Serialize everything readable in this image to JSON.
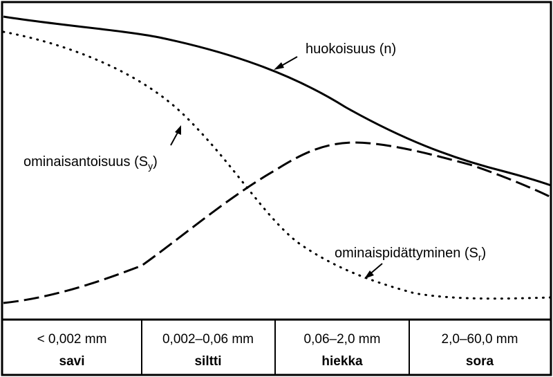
{
  "curves": {
    "porosity": {
      "label": "huokoisuus (n)",
      "style": "solid"
    },
    "specific_yield": {
      "label_main": "ominaisantoisuus (S",
      "label_sub": "y",
      "label_close": ")",
      "style": "dotted"
    },
    "specific_retention": {
      "label_main": "ominaispidättyminen (S",
      "label_sub": "r",
      "label_close": ")",
      "style": "dashed"
    }
  },
  "grain_classes": [
    {
      "range": "< 0,002 mm",
      "name": "savi"
    },
    {
      "range": "0,002–0,06 mm",
      "name": "siltti"
    },
    {
      "range": "0,06–2,0 mm",
      "name": "hiekka"
    },
    {
      "range": "2,0–60,0 mm",
      "name": "sora"
    }
  ],
  "colors": {
    "line": "#000000",
    "background": "#ffffff"
  }
}
